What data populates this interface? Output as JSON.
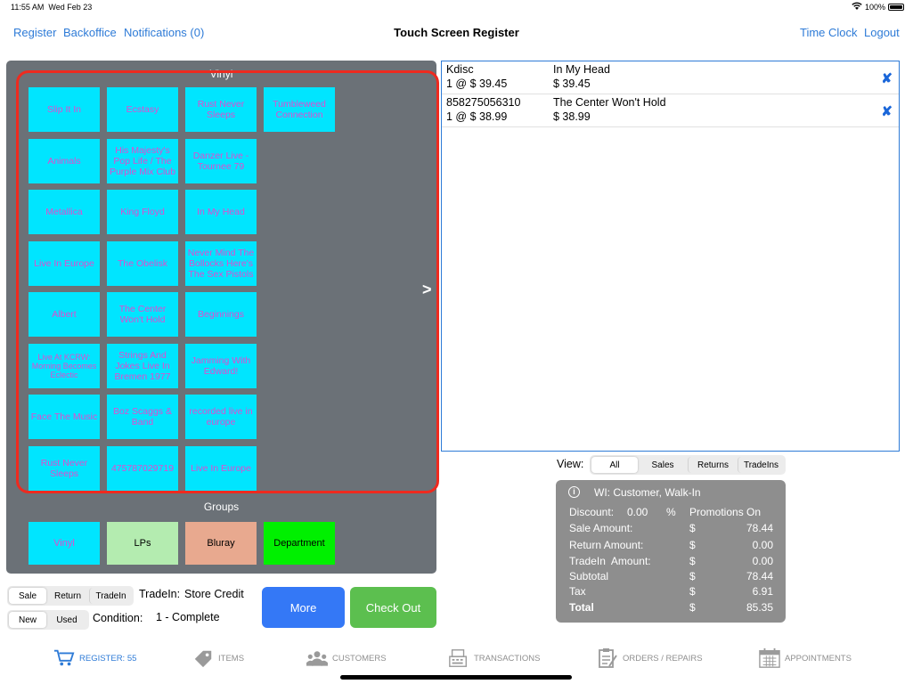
{
  "status": {
    "time": "11:55 AM",
    "date": "Wed Feb 23",
    "battery": "100%"
  },
  "nav": {
    "register": "Register",
    "backoffice": "Backoffice",
    "notifications": "Notifications (0)",
    "title": "Touch Screen Register",
    "time_clock": "Time Clock",
    "logout": "Logout"
  },
  "products": {
    "group_title": "Vinyl",
    "next_arrow": ">",
    "tiles": [
      "Slip It In",
      "Ecstasy",
      "Rust Never Sleeps",
      "Tumbleweed Connection",
      "Animals",
      "His Majesty's Pop Life / The Purple Mix Club",
      "Danzer Live - Tournee 79",
      "Metallica",
      "King Floyd",
      "In My Head",
      "Live In Europe",
      "The Obelisk",
      "Never Mind The Bollocks Here's The Sex Pistols",
      "Albert",
      "The Center Won't Hold",
      "Beginnings",
      "Live At KCRW: Morning Becomes Eclectic",
      "Strings And Jokes Live In Bremen 1977",
      "Jamming With Edward!",
      "Face The Music",
      "Boz Scaggs & Band",
      "recorded live in europe",
      "Rust Never Sleeps",
      "475787029719",
      "Live In Europe"
    ]
  },
  "groups": {
    "title": "Groups",
    "items": [
      {
        "label": "Vinyl",
        "bg": "#00e5ff",
        "fg": "#e04cd0"
      },
      {
        "label": "LPs",
        "bg": "#b4ecb0",
        "fg": "#000000"
      },
      {
        "label": "Bluray",
        "bg": "#e8a98f",
        "fg": "#000000"
      },
      {
        "label": "Department",
        "bg": "#00f000",
        "fg": "#000000"
      }
    ]
  },
  "cart": {
    "items": [
      {
        "sku": "Kdisc",
        "qty_price": "1 @ $ 39.45",
        "name": "In My Head",
        "total": "$ 39.45"
      },
      {
        "sku": "858275056310",
        "qty_price": "1 @ $ 38.99",
        "name": "The Center Won't Hold",
        "total": "$ 38.99"
      }
    ],
    "remove_glyph": "✘"
  },
  "view_filter": {
    "label": "View:",
    "options": [
      "All",
      "Sales",
      "Returns",
      "TradeIns"
    ],
    "selected": "All"
  },
  "totals": {
    "customer": "WI: Customer, Walk-In",
    "discount_label": "Discount:",
    "discount_value": "0.00",
    "discount_unit": "%",
    "promotions": "Promotions On",
    "currency": "$",
    "rows": [
      {
        "label": "Sale Amount:",
        "value": "78.44"
      },
      {
        "label": "Return Amount:",
        "value": "0.00"
      },
      {
        "label": "TradeIn  Amount:",
        "value": "0.00"
      },
      {
        "label": "Subtotal",
        "value": "78.44"
      },
      {
        "label": "Tax",
        "value": "6.91"
      },
      {
        "label": "Total",
        "value": "85.35"
      }
    ]
  },
  "transaction_mode": {
    "options": [
      "Sale",
      "Return",
      "TradeIn"
    ],
    "selected": "Sale"
  },
  "item_condition": {
    "options": [
      "New",
      "Used"
    ],
    "selected": "New"
  },
  "tradein": {
    "label": "TradeIn:",
    "value": "Store Credit"
  },
  "condition": {
    "label": "Condition:",
    "value": "1 - Complete"
  },
  "buttons": {
    "more": "More",
    "checkout": "Check Out",
    "more_color": "#3478f6",
    "checkout_color": "#5cbf4f"
  },
  "tabs": [
    {
      "label": "REGISTER: 55",
      "icon": "cart-icon",
      "active": true
    },
    {
      "label": "ITEMS",
      "icon": "tag-icon",
      "active": false
    },
    {
      "label": "CUSTOMERS",
      "icon": "people-icon",
      "active": false
    },
    {
      "label": "TRANSACTIONS",
      "icon": "register-icon",
      "active": false
    },
    {
      "label": "ORDERS / REPAIRS",
      "icon": "clipboard-icon",
      "active": false
    },
    {
      "label": "APPOINTMENTS",
      "icon": "calendar-icon",
      "active": false
    }
  ]
}
